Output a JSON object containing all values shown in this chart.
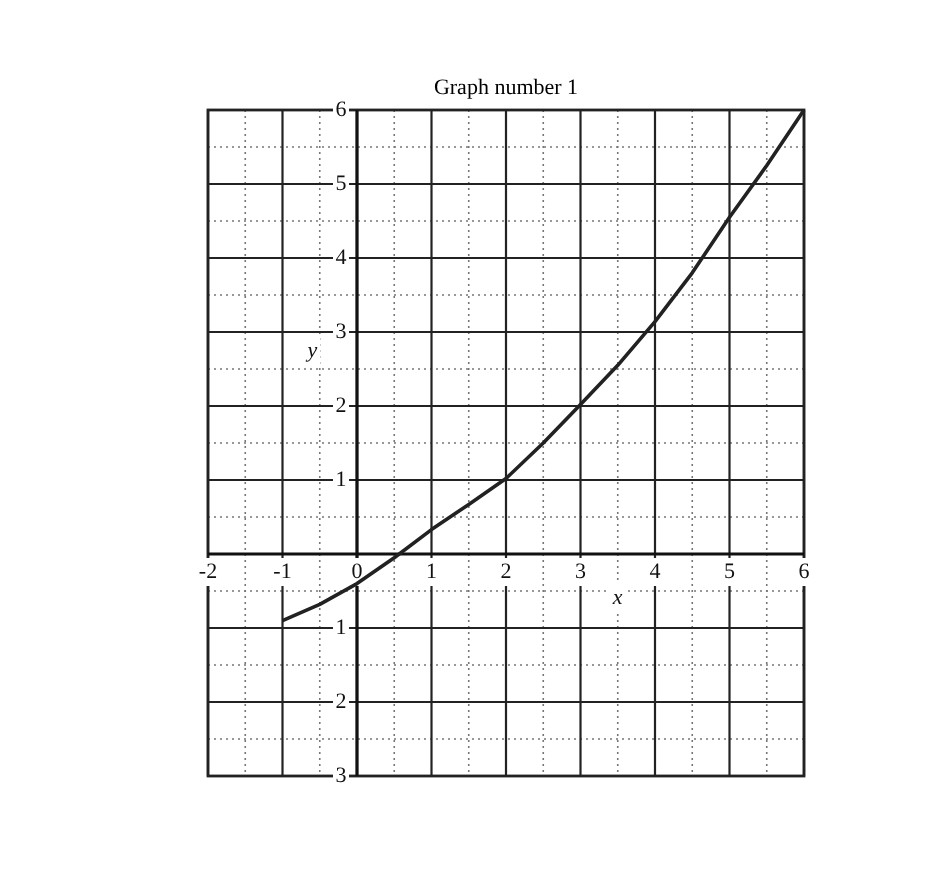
{
  "chart_data": {
    "type": "line",
    "title": "Graph number 1",
    "xlabel": "x",
    "ylabel": "y",
    "x": [
      -1,
      -0.5,
      0,
      0.5,
      1,
      1.5,
      2,
      2.5,
      3,
      3.5,
      4,
      4.5,
      5,
      5.5,
      6
    ],
    "series": [
      {
        "color": "#222222",
        "values": [
          -0.9,
          -0.68,
          -0.4,
          -0.05,
          0.33,
          0.67,
          1.02,
          1.5,
          2.02,
          2.55,
          3.14,
          3.8,
          4.55,
          5.25,
          6
        ]
      }
    ],
    "xlim": [
      -2,
      6
    ],
    "ylim": [
      -3,
      6
    ],
    "xticks": [
      -2,
      -1,
      0,
      1,
      2,
      3,
      4,
      5,
      6
    ],
    "yticks": [
      {
        "value": -3,
        "label": "3"
      },
      {
        "value": -2,
        "label": "2"
      },
      {
        "value": -1,
        "label": "1"
      },
      {
        "value": 0,
        "label": null
      },
      1,
      2,
      3,
      4,
      5,
      6
    ],
    "grid": true,
    "marker": "none",
    "line_style": "solid"
  }
}
